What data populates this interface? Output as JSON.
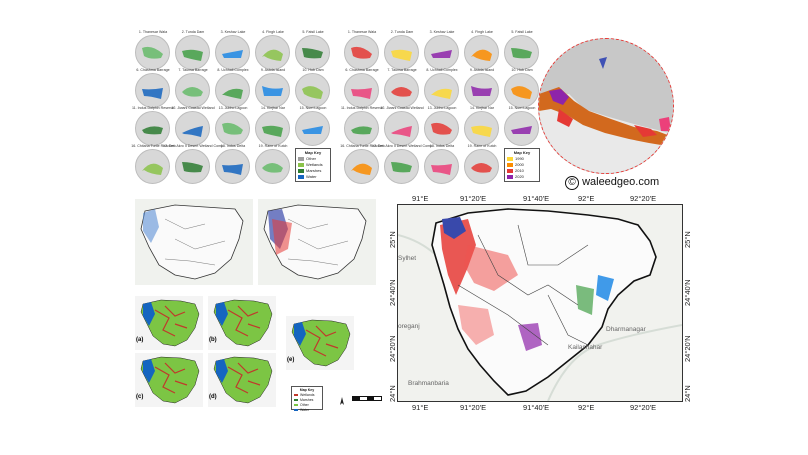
{
  "left_grid": {
    "labels": [
      "1. Thanesar Wala",
      "2. Tunda Dam",
      "3. Keshav Lake",
      "4. Fingh Lake",
      "5. Fatsil Lake",
      "6. Chashma Barrage",
      "7. Taunsa Barrage",
      "8. Uchhali Complex",
      "9. Astola Island",
      "10. Hub Dam",
      "11. Indus Dolphin Reserve",
      "12. Jiwani Coastal Wetland",
      "13. Jubho Lagoon",
      "14. Kinjhar Nar",
      "15. Nurri Lagoon",
      "16. Chitana Turtle Reaches",
      "17. Deh Akro II Desert Wetland Complex",
      "18. Indus Delta",
      "19. Rann of Kutch"
    ],
    "key_title": "Map Key",
    "key_items": [
      {
        "label": "Other",
        "color": "#9e9e9e"
      },
      {
        "label": "Wetlands",
        "color": "#8bc34a"
      },
      {
        "label": "Marshes",
        "color": "#2e7d32"
      },
      {
        "label": "Water",
        "color": "#1565c0"
      }
    ]
  },
  "right_grid": {
    "labels": [
      "1. Thanesar Wala",
      "2. Tunda Dam",
      "3. Keshav Lake",
      "4. Fingh Lake",
      "5. Fatsil Lake",
      "6. Chashma Barrage",
      "7. Taunsa Barrage",
      "8. Uchhali Complex",
      "9. Astola Island",
      "10. Hub Dam",
      "11. Indus Dolphin Reserve",
      "12. Jiwani Coastal Wetland",
      "13. Jubho Lagoon",
      "14. Kinjhar Nar",
      "15. Nurri Lagoon",
      "16. Chitana Turtle Reaches",
      "17. Deh Akro II Desert Wetland Complex",
      "18. Indus Delta",
      "19. Rann of Kutch"
    ],
    "key_title": "Map Key",
    "key_items": [
      {
        "label": "1990",
        "color": "#fdd835"
      },
      {
        "label": "2000",
        "color": "#fb8c00"
      },
      {
        "label": "2010",
        "color": "#e53935"
      },
      {
        "label": "2020",
        "color": "#8e24aa"
      }
    ]
  },
  "watermark": {
    "symbol": "©",
    "text": "waleedgeo.com"
  },
  "small_maps": {
    "labels": [
      "(a)",
      "(b)",
      "(c)",
      "(d)",
      "(e)"
    ],
    "key_title": "Map Key",
    "key_items": [
      "Wetlands",
      "Marshes",
      "Other",
      "Water"
    ]
  },
  "large_map": {
    "top_ticks": [
      "91°E",
      "91°20'E",
      "91°40'E",
      "92°E",
      "92°20'E"
    ],
    "bottom_ticks": [
      "91°E",
      "91°20'E",
      "91°40'E",
      "92°E",
      "92°20'E"
    ],
    "left_ticks": [
      "25°N",
      "24°40'N",
      "24°20'N",
      "24°N"
    ],
    "right_ticks": [
      "25°N",
      "24°40'N",
      "24°20'N",
      "24°N"
    ],
    "places": [
      "Sylhet",
      "oreganj",
      "Brahmanbaria",
      "Kailashahar",
      "Dharmanagar"
    ]
  }
}
